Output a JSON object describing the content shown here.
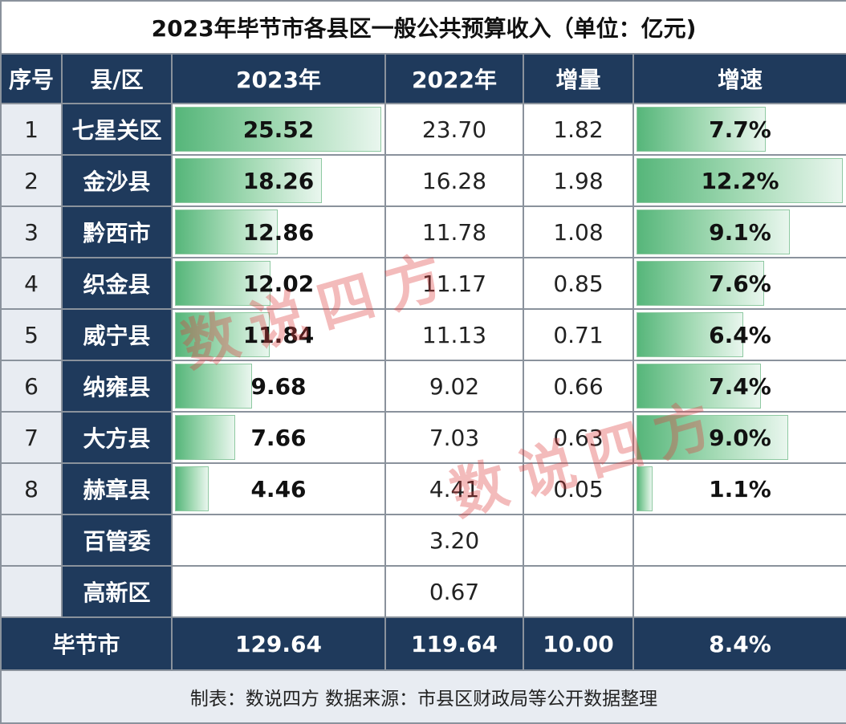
{
  "title": "2023年毕节市各县区一般公共预算收入（单位：亿元)",
  "headers": {
    "index": "序号",
    "name": "县/区",
    "y2023": "2023年",
    "y2022": "2022年",
    "increase": "增量",
    "growth": "增速"
  },
  "rows": [
    {
      "index": "1",
      "name": "七星关区",
      "y2023": "25.52",
      "y2022": "23.70",
      "increase": "1.82",
      "growth": "7.7%"
    },
    {
      "index": "2",
      "name": "金沙县",
      "y2023": "18.26",
      "y2022": "16.28",
      "increase": "1.98",
      "growth": "12.2%"
    },
    {
      "index": "3",
      "name": "黔西市",
      "y2023": "12.86",
      "y2022": "11.78",
      "increase": "1.08",
      "growth": "9.1%"
    },
    {
      "index": "4",
      "name": "织金县",
      "y2023": "12.02",
      "y2022": "11.17",
      "increase": "0.85",
      "growth": "7.6%"
    },
    {
      "index": "5",
      "name": "威宁县",
      "y2023": "11.84",
      "y2022": "11.13",
      "increase": "0.71",
      "growth": "6.4%"
    },
    {
      "index": "6",
      "name": "纳雍县",
      "y2023": "9.68",
      "y2022": "9.02",
      "increase": "0.66",
      "growth": "7.4%"
    },
    {
      "index": "7",
      "name": "大方县",
      "y2023": "7.66",
      "y2022": "7.03",
      "increase": "0.63",
      "growth": "9.0%"
    },
    {
      "index": "8",
      "name": "赫章县",
      "y2023": "4.46",
      "y2022": "4.41",
      "increase": "0.05",
      "growth": "1.1%"
    },
    {
      "index": "",
      "name": "百管委",
      "y2023": "",
      "y2022": "3.20",
      "increase": "",
      "growth": ""
    },
    {
      "index": "",
      "name": "高新区",
      "y2023": "",
      "y2022": "0.67",
      "increase": "",
      "growth": ""
    }
  ],
  "total": {
    "name": "毕节市",
    "y2023": "129.64",
    "y2022": "119.64",
    "increase": "10.00",
    "growth": "8.4%"
  },
  "footer": "制表：数说四方    数据来源：市县区财政局等公开数据整理",
  "watermark": "数说四方",
  "chart_data": {
    "type": "table",
    "title": "2023年毕节市各县区一般公共预算收入（单位：亿元)",
    "columns": [
      "序号",
      "县/区",
      "2023年",
      "2022年",
      "增量",
      "增速"
    ],
    "categories": [
      "七星关区",
      "金沙县",
      "黔西市",
      "织金县",
      "威宁县",
      "纳雍县",
      "大方县",
      "赫章县",
      "百管委",
      "高新区"
    ],
    "series": [
      {
        "name": "2023年",
        "values": [
          25.52,
          18.26,
          12.86,
          12.02,
          11.84,
          9.68,
          7.66,
          4.46,
          null,
          null
        ]
      },
      {
        "name": "2022年",
        "values": [
          23.7,
          16.28,
          11.78,
          11.17,
          11.13,
          9.02,
          7.03,
          4.41,
          3.2,
          0.67
        ]
      },
      {
        "name": "增量",
        "values": [
          1.82,
          1.98,
          1.08,
          0.85,
          0.71,
          0.66,
          0.63,
          0.05,
          null,
          null
        ]
      },
      {
        "name": "增速",
        "values": [
          7.7,
          12.2,
          9.1,
          7.6,
          6.4,
          7.4,
          9.0,
          1.1,
          null,
          null
        ]
      }
    ],
    "total": {
      "name": "毕节市",
      "2023年": 129.64,
      "2022年": 119.64,
      "增量": 10.0,
      "增速": 8.4
    },
    "bar_columns": [
      "2023年",
      "增速"
    ],
    "bar_color": "#56b67a"
  }
}
